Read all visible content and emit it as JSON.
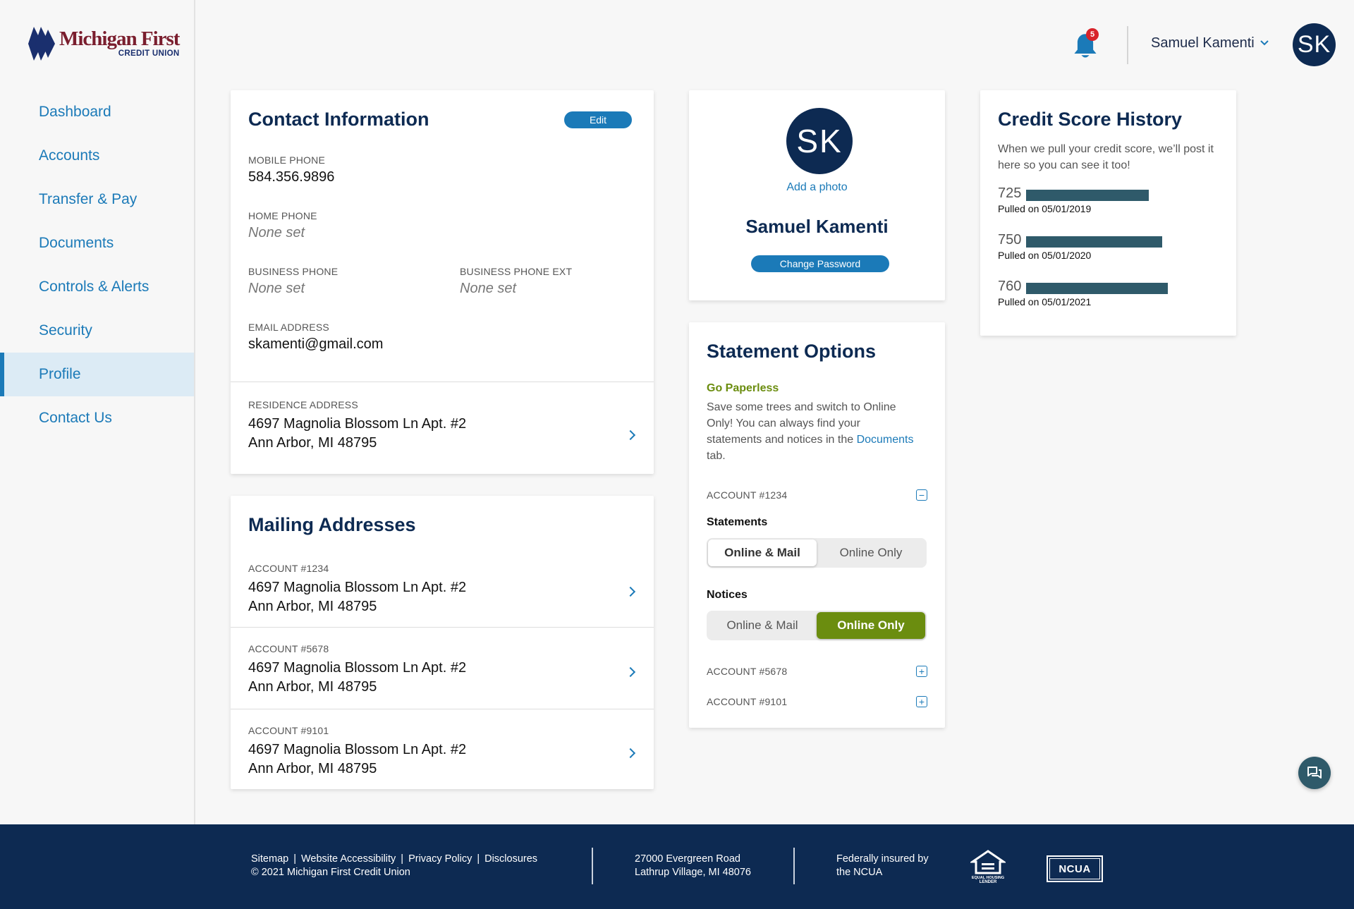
{
  "brand": {
    "name_main": "Michigan First",
    "name_sub": "CREDIT UNION",
    "primary_color": "#0d2a52",
    "link_color": "#1b7ab8",
    "logo_color": "#7a1e2e",
    "accent_green": "#6b8d0f"
  },
  "sidebar": {
    "items": [
      {
        "label": "Dashboard"
      },
      {
        "label": "Accounts"
      },
      {
        "label": "Transfer & Pay"
      },
      {
        "label": "Documents"
      },
      {
        "label": "Controls & Alerts"
      },
      {
        "label": "Security"
      },
      {
        "label": "Profile",
        "active": true
      },
      {
        "label": "Contact Us"
      }
    ]
  },
  "header": {
    "notification_count": "5",
    "user_name": "Samuel Kamenti",
    "avatar_initials": "SK",
    "icons": [
      "bell-icon",
      "chevron-down-icon"
    ]
  },
  "contact": {
    "title": "Contact Information",
    "edit_label": "Edit",
    "mobile_label": "MOBILE PHONE",
    "mobile_value": "584.356.9896",
    "home_label": "HOME PHONE",
    "home_value": "None set",
    "business_label": "BUSINESS PHONE",
    "business_value": "None set",
    "business_ext_label": "BUSINESS PHONE EXT",
    "business_ext_value": "None set",
    "email_label": "EMAIL ADDRESS",
    "email_value": "skamenti@gmail.com",
    "residence_label": "RESIDENCE ADDRESS",
    "residence_line1": "4697 Magnolia Blossom Ln Apt. #2",
    "residence_line2": "Ann Arbor, MI 48795"
  },
  "mailing": {
    "title": "Mailing Addresses",
    "items": [
      {
        "account": "ACCOUNT #1234",
        "line1": "4697 Magnolia Blossom Ln Apt. #2",
        "line2": "Ann Arbor, MI 48795"
      },
      {
        "account": "ACCOUNT #5678",
        "line1": "4697 Magnolia Blossom Ln Apt. #2",
        "line2": "Ann Arbor, MI 48795"
      },
      {
        "account": "ACCOUNT #9101",
        "line1": "4697 Magnolia Blossom Ln Apt. #2",
        "line2": "Ann Arbor, MI 48795"
      }
    ]
  },
  "profile": {
    "initials": "SK",
    "add_photo": "Add a photo",
    "name": "Samuel Kamenti",
    "change_password": "Change Password"
  },
  "statement": {
    "title": "Statement Options",
    "paperless_title": "Go Paperless",
    "paperless_text": "Save some trees and switch to Online Only! You can always find your statements and notices in the",
    "documents_link": "Documents",
    "paperless_tail": "tab.",
    "accounts": [
      {
        "label": "ACCOUNT #1234",
        "expanded": true,
        "toggle": "−"
      },
      {
        "label": "ACCOUNT #5678",
        "expanded": false,
        "toggle": "+"
      },
      {
        "label": "ACCOUNT #9101",
        "expanded": false,
        "toggle": "+"
      }
    ],
    "statements_label": "Statements",
    "statements_options": [
      "Online & Mail",
      "Online Only"
    ],
    "statements_selected": "Online & Mail",
    "notices_label": "Notices",
    "notices_options": [
      "Online & Mail",
      "Online Only"
    ],
    "notices_selected": "Online Only"
  },
  "credit": {
    "title": "Credit Score History",
    "intro": "When we pull your credit score, we’ll post it here so you can see it too!",
    "scores": [
      {
        "score": "725",
        "date": "Pulled on 05/01/2019",
        "value": 725
      },
      {
        "score": "750",
        "date": "Pulled on 05/01/2020",
        "value": 750
      },
      {
        "score": "760",
        "date": "Pulled on 05/01/2021",
        "value": 760
      }
    ]
  },
  "footer": {
    "links": [
      "Sitemap",
      "Website Accessibility",
      "Privacy Policy",
      "Disclosures"
    ],
    "link_separator": "|",
    "copyright": "© 2021 Michigan First Credit Union",
    "address_line1": "27000 Evergreen Road",
    "address_line2": "Lathrup Village, MI 48076",
    "insured_line1": "Federally insured by",
    "insured_line2": "the NCUA",
    "ncua_label": "NCUA",
    "equal_housing_label": "EQUAL HOUSING LENDER"
  }
}
